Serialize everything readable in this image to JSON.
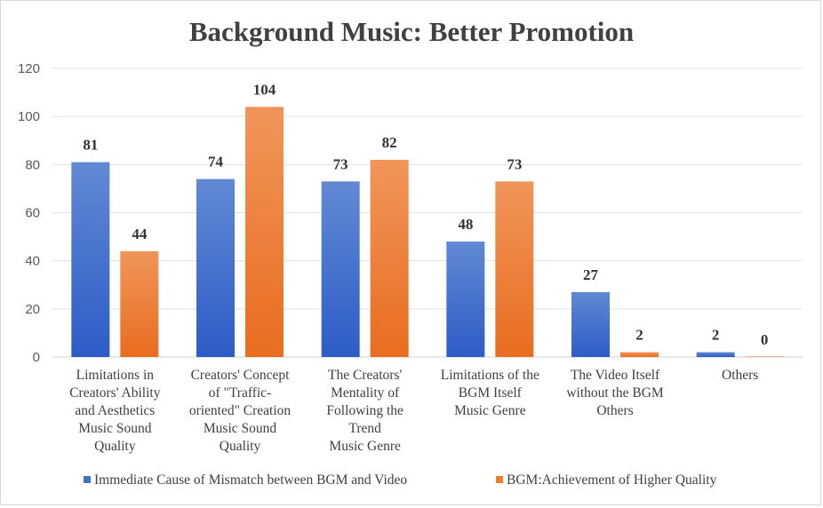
{
  "chart_data": {
    "type": "bar",
    "title": "Background Music: Better Promotion",
    "xlabel": "",
    "ylabel": "",
    "ylim": [
      0,
      120
    ],
    "yticks": [
      0,
      20,
      40,
      60,
      80,
      100,
      120
    ],
    "grid": true,
    "legend_position": "bottom",
    "categories": [
      [
        "Limitations in",
        "Creators' Ability",
        "and Aesthetics",
        "Music Sound",
        "Quality"
      ],
      [
        "Creators' Concept",
        "of \"Traffic-",
        "oriented\" Creation",
        "Music Sound",
        "Quality"
      ],
      [
        "The Creators'",
        "Mentality of",
        "Following the",
        "Trend",
        "Music Genre"
      ],
      [
        "Limitations of the",
        "BGM Itself",
        "Music Genre"
      ],
      [
        "The Video Itself",
        "without the BGM",
        "Others"
      ],
      [
        "Others"
      ]
    ],
    "series": [
      {
        "name": "Immediate Cause of Mismatch between BGM and Video",
        "color": "#4472C4",
        "values": [
          81,
          74,
          73,
          48,
          27,
          2
        ]
      },
      {
        "name": "BGM:Achievement of Higher Quality",
        "color": "#ED7D31",
        "values": [
          44,
          104,
          82,
          73,
          2,
          0
        ]
      }
    ]
  }
}
